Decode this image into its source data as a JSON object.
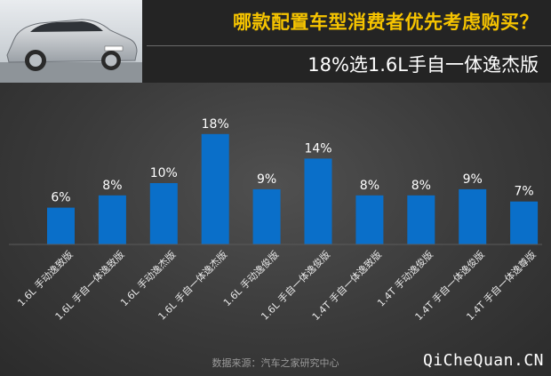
{
  "header": {
    "headline": "哪款配置车型消费者优先考虑购买？",
    "subheadline": "18%选1.6L手自一体逸杰版"
  },
  "colors": {
    "bar": "#0a6fc9",
    "headline": "#f6c400",
    "panel": "#3a3a3a"
  },
  "chart_data": {
    "type": "bar",
    "title": "",
    "xlabel": "",
    "ylabel": "",
    "ylim": [
      0,
      20
    ],
    "grid": false,
    "categories": [
      "1.6L 手动逸致版",
      "1.6L 手自一体逸致版",
      "1.6L 手动逸杰版",
      "1.6L 手自一体逸杰版",
      "1.6L 手动逸俊版",
      "1.6L 手自一体逸俊版",
      "1.4T 手自一体逸致版",
      "1.4T 手动逸俊版",
      "1.4T 手自一体逸俊版",
      "1.4T 手自一体逸尊版"
    ],
    "values": [
      6,
      8,
      10,
      18,
      9,
      14,
      8,
      8,
      9,
      7
    ],
    "value_labels": [
      "6%",
      "8%",
      "10%",
      "18%",
      "9%",
      "14%",
      "8%",
      "8%",
      "9%",
      "7%"
    ]
  },
  "footer": {
    "source": "数据来源：汽车之家研究中心",
    "watermark": "QiCheQuan.CN"
  }
}
